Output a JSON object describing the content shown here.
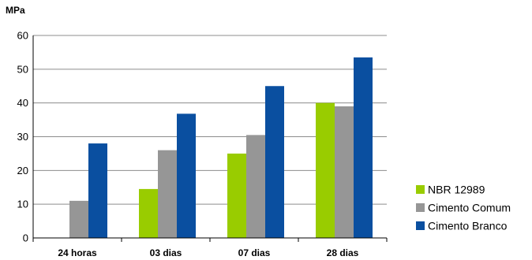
{
  "chart_data": {
    "type": "bar",
    "title": "",
    "xlabel": "",
    "ylabel": "MPa",
    "ylim": [
      0,
      60
    ],
    "yticks": [
      0,
      10,
      20,
      30,
      40,
      50,
      60
    ],
    "grid": true,
    "legend_position": "bottom-right",
    "categories": [
      "24 horas",
      "03 dias",
      "07 dias",
      "28 dias"
    ],
    "series": [
      {
        "name": "NBR 12989",
        "color": "#99cc00",
        "values": [
          null,
          14.5,
          25,
          40
        ]
      },
      {
        "name": "Cimento Comum",
        "color": "#969696",
        "values": [
          11,
          26,
          30.5,
          39
        ]
      },
      {
        "name": "Cimento Branco",
        "color": "#0a4fa0",
        "values": [
          28,
          36.8,
          45,
          53.5
        ]
      }
    ]
  }
}
